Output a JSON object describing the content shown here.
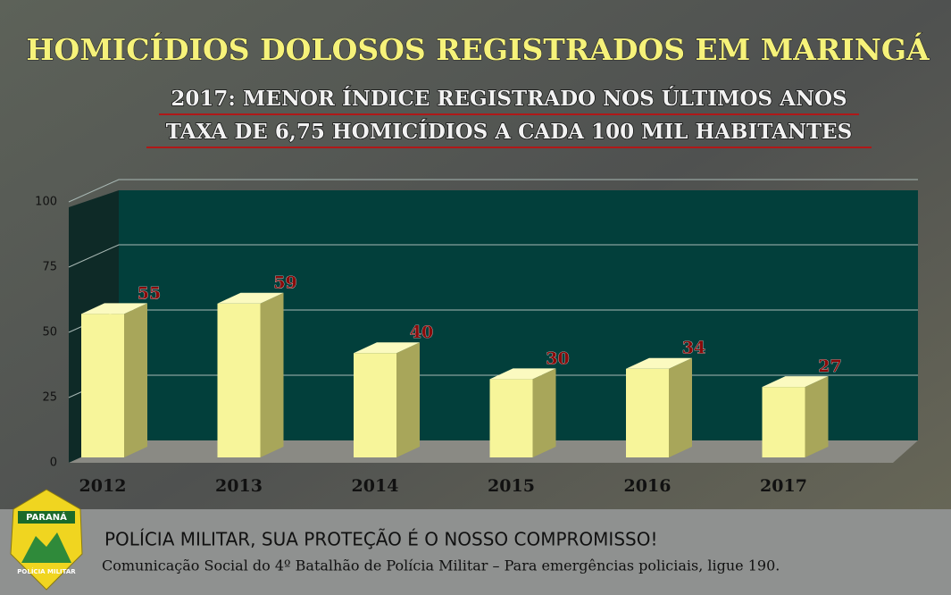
{
  "chart_data": {
    "type": "bar3d",
    "title": "HOMICÍDIOS DOLOSOS REGISTRADOS EM MARINGÁ",
    "subtitle": [
      "2017: MENOR ÍNDICE REGISTRADO NOS ÚLTIMOS ANOS",
      "TAXA DE 6,75 HOMICÍDIOS A CADA 100 MIL HABITANTES"
    ],
    "categories": [
      "2012",
      "2013",
      "2014",
      "2015",
      "2016",
      "2017"
    ],
    "values": [
      55,
      59,
      40,
      30,
      34,
      27
    ],
    "color": "#f7f59a",
    "ylim": [
      0,
      100
    ],
    "yticks": [
      0,
      25,
      50,
      75,
      100
    ],
    "grid": true
  },
  "footer": {
    "slogan": "POLÍCIA MILITAR, SUA PROTEÇÃO É O NOSSO COMPROMISSO!",
    "credit": "Comunicação Social do 4º Batalhão de Polícia Militar – Para emergências policiais, ligue 190."
  },
  "badge": {
    "top": "PARANÁ",
    "bottom": "POLÍCIA MILITAR"
  }
}
